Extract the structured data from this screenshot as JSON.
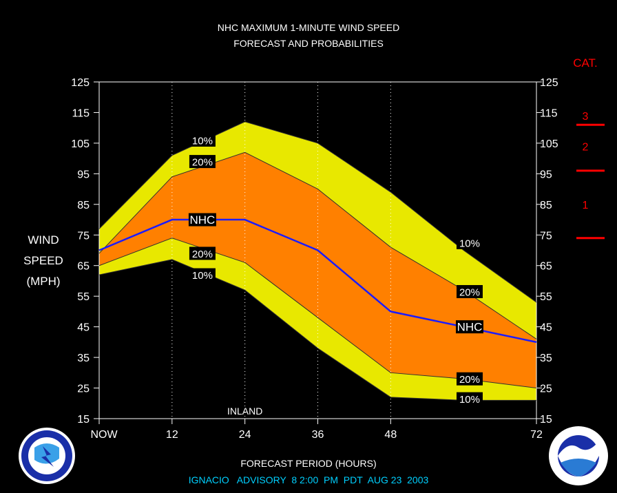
{
  "title_line1": "NHC MAXIMUM 1-MINUTE WIND SPEED",
  "title_line2": "FORECAST AND PROBABILITIES",
  "ylabel_lines": [
    "WIND",
    "SPEED",
    "(MPH)"
  ],
  "xlabel": "FORECAST PERIOD (HOURS)",
  "footer": "IGNACIO   ADVISORY  8 2:00  PM  PDT  AUG 23  2003",
  "inland_label": "INLAND",
  "category_header": "CAT.",
  "colors": {
    "background": "#000000",
    "outer_band": "#e8e800",
    "inner_band": "#ff8000",
    "nhc_line": "#1c1cff",
    "category": "#ff0000",
    "footer": "#00d0ff"
  },
  "chart_data": {
    "type": "area",
    "title": "NHC MAXIMUM 1-MINUTE WIND SPEED FORECAST AND PROBABILITIES",
    "xlabel": "FORECAST PERIOD (HOURS)",
    "ylabel": "WIND SPEED (MPH)",
    "xlim": [
      0,
      72
    ],
    "ylim": [
      15,
      125
    ],
    "x_ticks": [
      0,
      12,
      24,
      36,
      48,
      72
    ],
    "x_tick_labels": [
      "NOW",
      "12",
      "24",
      "36",
      "48",
      "72"
    ],
    "y_ticks": [
      15,
      25,
      35,
      45,
      55,
      65,
      75,
      85,
      95,
      105,
      115,
      125
    ],
    "vertical_dotted_lines_at": [
      12,
      24,
      36,
      48
    ],
    "x": [
      0,
      12,
      24,
      36,
      48,
      60,
      72
    ],
    "series": [
      {
        "name": "10%",
        "role": "upper",
        "values": [
          77,
          101,
          112,
          105,
          89,
          70,
          53
        ]
      },
      {
        "name": "20%",
        "role": "upper",
        "values": [
          69,
          94,
          102,
          90,
          71,
          57,
          41
        ]
      },
      {
        "name": "NHC",
        "values": [
          70,
          80,
          80,
          70,
          50,
          45,
          40
        ]
      },
      {
        "name": "20%",
        "role": "lower",
        "values": [
          65,
          74,
          66,
          48,
          30,
          28,
          25
        ]
      },
      {
        "name": "10%",
        "role": "lower",
        "values": [
          62,
          67,
          57,
          38,
          22,
          21,
          21
        ]
      }
    ],
    "labels": [
      {
        "text": "10%",
        "x": 17,
        "y": 106
      },
      {
        "text": "20%",
        "x": 17,
        "y": 99
      },
      {
        "text": "NHC",
        "x": 17,
        "y": 80
      },
      {
        "text": "20%",
        "x": 17,
        "y": 69
      },
      {
        "text": "10%",
        "x": 17,
        "y": 62
      },
      {
        "text": "10%",
        "x": 61,
        "y": 72.5
      },
      {
        "text": "20%",
        "x": 61,
        "y": 56.5
      },
      {
        "text": "NHC",
        "x": 61,
        "y": 45
      },
      {
        "text": "20%",
        "x": 61,
        "y": 28
      },
      {
        "text": "10%",
        "x": 61,
        "y": 21.5
      }
    ],
    "categories_scale": [
      {
        "label": "3",
        "y": 114,
        "boundary_below": 111
      },
      {
        "label": "2",
        "y": 104,
        "boundary_below": 96
      },
      {
        "label": "1",
        "y": 85,
        "boundary_below": 74
      }
    ],
    "annotation": {
      "text": "INLAND",
      "x": 24,
      "y": 17
    }
  }
}
